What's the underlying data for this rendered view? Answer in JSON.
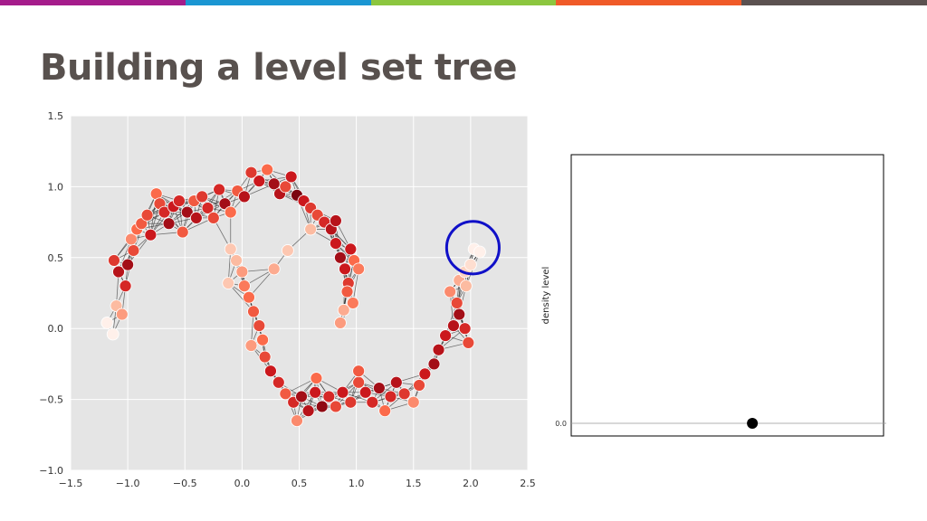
{
  "slide": {
    "title": "Building a level set tree",
    "stripe_colors": [
      "#a51c8b",
      "#1b96d2",
      "#8cc63f",
      "#f05a28",
      "#5b5150"
    ]
  },
  "chart_data": [
    {
      "type": "scatter",
      "title": "",
      "xlabel": "",
      "ylabel": "",
      "xlim": [
        -1.5,
        2.5
      ],
      "ylim": [
        -1.0,
        1.5
      ],
      "xticks": [
        "−1.5",
        "−1.0",
        "−0.5",
        "0.0",
        "0.5",
        "1.0",
        "1.5",
        "2.0",
        "2.5"
      ],
      "yticks": [
        "−1.0",
        "−0.5",
        "0.0",
        "0.5",
        "1.0",
        "1.5"
      ],
      "grid": true,
      "background": "#e5e5e5",
      "edge_color": "#222222",
      "point_colormap": "Reds",
      "highlight_circle": {
        "center": [
          2.02,
          0.57
        ],
        "radius": 0.23,
        "color": "#1010c8"
      },
      "points": [
        [
          -1.18,
          0.04,
          0.02
        ],
        [
          -1.13,
          -0.04,
          0.02
        ],
        [
          -1.1,
          0.16,
          0.25
        ],
        [
          -1.05,
          0.1,
          0.35
        ],
        [
          -1.12,
          0.48,
          0.65
        ],
        [
          -1.08,
          0.4,
          0.8
        ],
        [
          -1.0,
          0.45,
          0.85
        ],
        [
          -1.02,
          0.3,
          0.7
        ],
        [
          -0.95,
          0.55,
          0.6
        ],
        [
          -0.97,
          0.63,
          0.4
        ],
        [
          -0.92,
          0.7,
          0.5
        ],
        [
          -0.88,
          0.74,
          0.55
        ],
        [
          -0.83,
          0.8,
          0.6
        ],
        [
          -0.8,
          0.66,
          0.75
        ],
        [
          -0.75,
          0.95,
          0.5
        ],
        [
          -0.72,
          0.88,
          0.6
        ],
        [
          -0.68,
          0.82,
          0.7
        ],
        [
          -0.64,
          0.74,
          0.85
        ],
        [
          -0.6,
          0.86,
          0.75
        ],
        [
          -0.55,
          0.9,
          0.7
        ],
        [
          -0.52,
          0.68,
          0.55
        ],
        [
          -0.48,
          0.82,
          0.85
        ],
        [
          -0.42,
          0.9,
          0.55
        ],
        [
          -0.4,
          0.78,
          0.8
        ],
        [
          -0.35,
          0.93,
          0.65
        ],
        [
          -0.3,
          0.85,
          0.7
        ],
        [
          -0.25,
          0.78,
          0.6
        ],
        [
          -0.2,
          0.98,
          0.7
        ],
        [
          -0.15,
          0.88,
          0.85
        ],
        [
          -0.1,
          0.82,
          0.5
        ],
        [
          -0.04,
          0.97,
          0.55
        ],
        [
          0.02,
          0.93,
          0.8
        ],
        [
          0.08,
          1.1,
          0.65
        ],
        [
          0.15,
          1.04,
          0.75
        ],
        [
          0.22,
          1.12,
          0.5
        ],
        [
          0.28,
          1.02,
          0.85
        ],
        [
          0.33,
          0.95,
          0.8
        ],
        [
          0.38,
          1.0,
          0.6
        ],
        [
          0.43,
          1.07,
          0.75
        ],
        [
          0.48,
          0.94,
          0.95
        ],
        [
          0.54,
          0.9,
          0.75
        ],
        [
          0.6,
          0.85,
          0.65
        ],
        [
          0.66,
          0.8,
          0.6
        ],
        [
          0.72,
          0.75,
          0.7
        ],
        [
          0.78,
          0.7,
          0.8
        ],
        [
          0.82,
          0.6,
          0.75
        ],
        [
          0.86,
          0.5,
          0.85
        ],
        [
          0.9,
          0.42,
          0.75
        ],
        [
          0.93,
          0.32,
          0.65
        ],
        [
          0.97,
          0.18,
          0.45
        ],
        [
          0.89,
          0.13,
          0.3
        ],
        [
          0.86,
          0.04,
          0.35
        ],
        [
          0.92,
          0.26,
          0.55
        ],
        [
          0.98,
          0.48,
          0.5
        ],
        [
          0.95,
          0.56,
          0.75
        ],
        [
          1.02,
          0.42,
          0.45
        ],
        [
          0.82,
          0.76,
          0.8
        ],
        [
          0.6,
          0.7,
          0.25
        ],
        [
          -0.1,
          0.56,
          0.2
        ],
        [
          -0.05,
          0.48,
          0.25
        ],
        [
          0.0,
          0.4,
          0.35
        ],
        [
          0.02,
          0.3,
          0.45
        ],
        [
          -0.12,
          0.32,
          0.2
        ],
        [
          0.06,
          0.22,
          0.5
        ],
        [
          0.1,
          0.12,
          0.55
        ],
        [
          0.15,
          0.02,
          0.6
        ],
        [
          0.18,
          -0.08,
          0.5
        ],
        [
          0.08,
          -0.12,
          0.35
        ],
        [
          0.2,
          -0.2,
          0.6
        ],
        [
          0.25,
          -0.3,
          0.75
        ],
        [
          0.32,
          -0.38,
          0.7
        ],
        [
          0.38,
          -0.46,
          0.55
        ],
        [
          0.45,
          -0.52,
          0.7
        ],
        [
          0.52,
          -0.48,
          0.85
        ],
        [
          0.48,
          -0.65,
          0.4
        ],
        [
          0.58,
          -0.58,
          0.8
        ],
        [
          0.64,
          -0.45,
          0.75
        ],
        [
          0.7,
          -0.55,
          0.9
        ],
        [
          0.76,
          -0.48,
          0.7
        ],
        [
          0.82,
          -0.55,
          0.6
        ],
        [
          0.88,
          -0.45,
          0.75
        ],
        [
          0.95,
          -0.52,
          0.65
        ],
        [
          1.02,
          -0.38,
          0.6
        ],
        [
          1.08,
          -0.45,
          0.75
        ],
        [
          1.14,
          -0.52,
          0.7
        ],
        [
          1.2,
          -0.42,
          0.85
        ],
        [
          1.25,
          -0.58,
          0.5
        ],
        [
          1.3,
          -0.48,
          0.7
        ],
        [
          1.35,
          -0.38,
          0.8
        ],
        [
          1.42,
          -0.46,
          0.65
        ],
        [
          1.5,
          -0.52,
          0.4
        ],
        [
          1.55,
          -0.4,
          0.6
        ],
        [
          1.6,
          -0.32,
          0.75
        ],
        [
          1.68,
          -0.25,
          0.85
        ],
        [
          1.72,
          -0.15,
          0.8
        ],
        [
          1.78,
          -0.05,
          0.75
        ],
        [
          1.85,
          0.02,
          0.8
        ],
        [
          1.9,
          0.1,
          0.85
        ],
        [
          1.95,
          0.0,
          0.7
        ],
        [
          1.98,
          -0.1,
          0.6
        ],
        [
          1.88,
          0.18,
          0.6
        ],
        [
          1.82,
          0.26,
          0.4
        ],
        [
          1.9,
          0.34,
          0.3
        ],
        [
          1.95,
          0.4,
          0.15
        ],
        [
          2.0,
          0.45,
          0.1
        ],
        [
          1.96,
          0.3,
          0.25
        ],
        [
          2.03,
          0.56,
          0.02
        ],
        [
          2.08,
          0.54,
          0.02
        ],
        [
          1.02,
          -0.3,
          0.55
        ],
        [
          0.65,
          -0.35,
          0.5
        ],
        [
          0.4,
          0.55,
          0.2
        ],
        [
          0.28,
          0.42,
          0.3
        ]
      ]
    },
    {
      "type": "scatter",
      "title": "",
      "ylabel": "density level",
      "yticks": [
        "0.0"
      ],
      "points": [
        [
          0.58,
          0.0
        ]
      ]
    }
  ]
}
